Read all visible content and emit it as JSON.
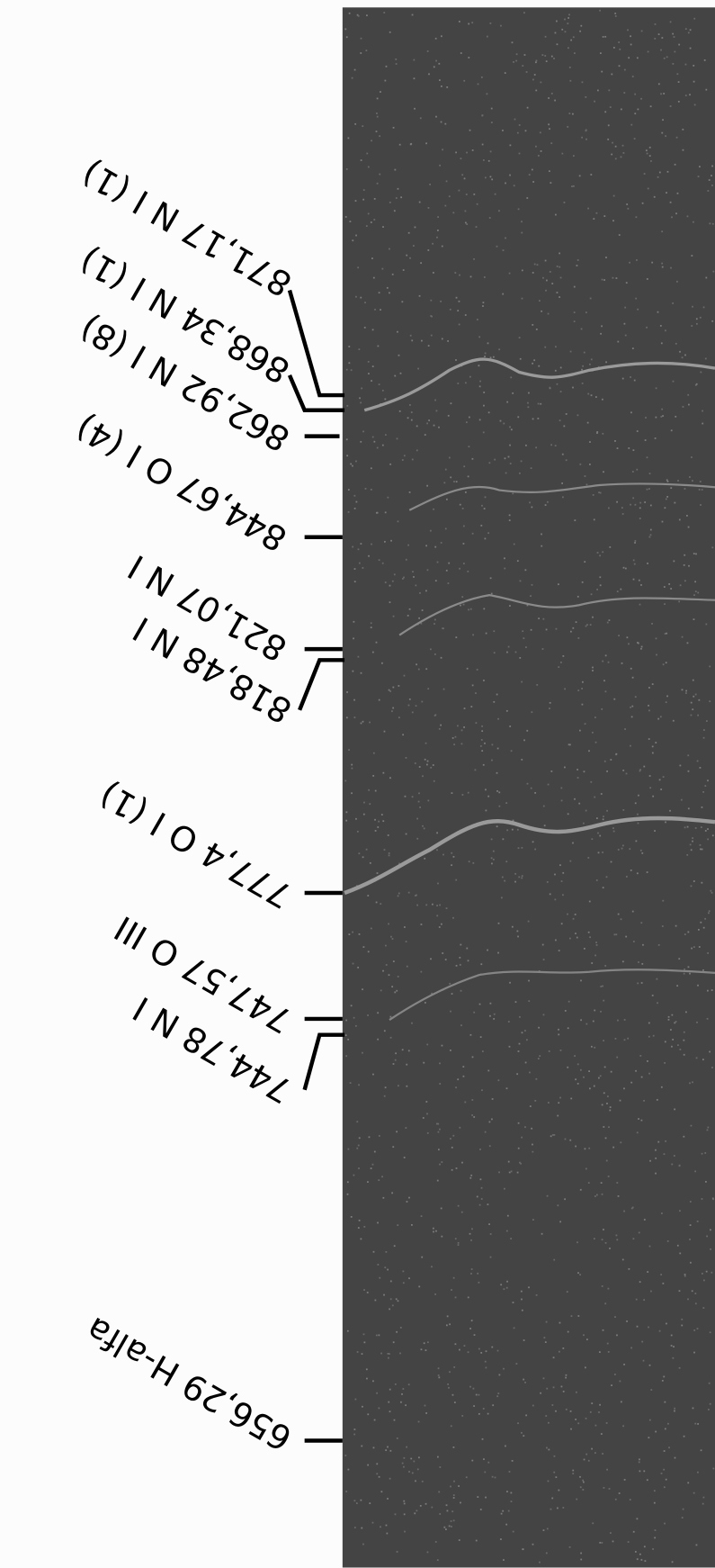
{
  "labels": [
    "871,17 N I (1)",
    "868,34 N I (1)",
    "862,92 N I (8)",
    "844,67 O I (4)",
    "821,07 N I",
    "818,48 N I",
    "777,4 O I (1)",
    "747,57 O III",
    "744,78 N I",
    "656,29 H-alfa"
  ]
}
